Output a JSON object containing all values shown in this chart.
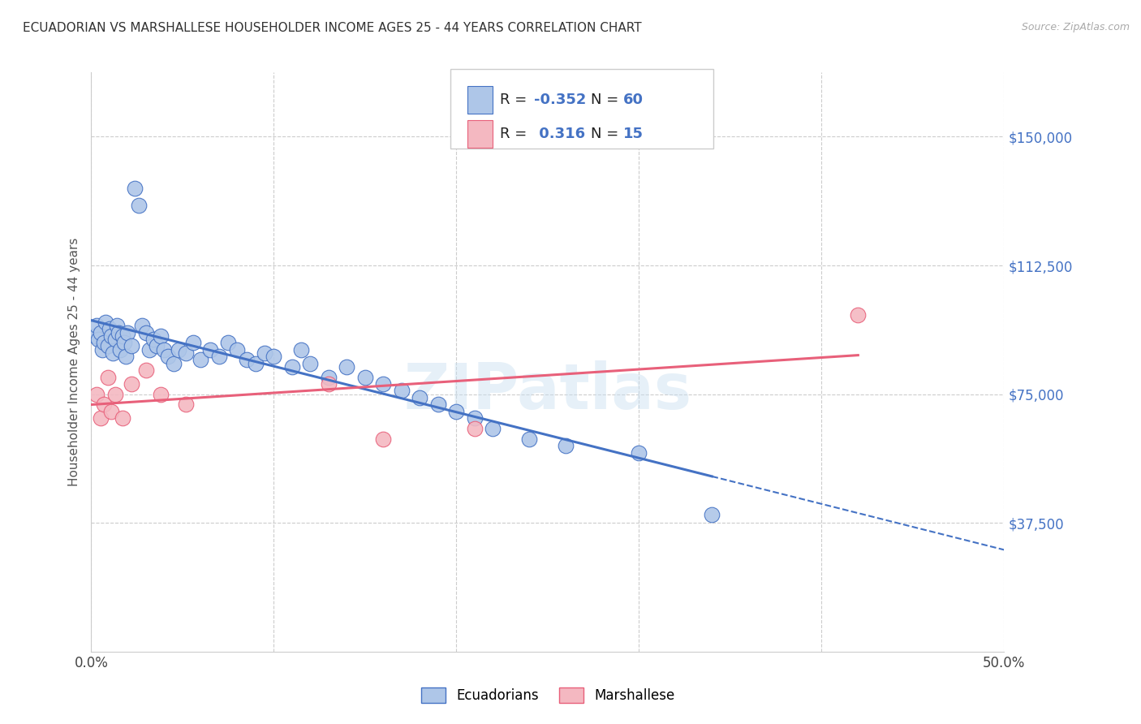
{
  "title": "ECUADORIAN VS MARSHALLESE HOUSEHOLDER INCOME AGES 25 - 44 YEARS CORRELATION CHART",
  "source": "Source: ZipAtlas.com",
  "ylabel": "Householder Income Ages 25 - 44 years",
  "xlim": [
    0.0,
    0.5
  ],
  "ylim": [
    0,
    168750
  ],
  "xticks": [
    0.0,
    0.1,
    0.2,
    0.3,
    0.4,
    0.5
  ],
  "xticklabels": [
    "0.0%",
    "",
    "",
    "",
    "",
    "50.0%"
  ],
  "ytick_values": [
    37500,
    75000,
    112500,
    150000
  ],
  "ytick_labels": [
    "$37,500",
    "$75,000",
    "$112,500",
    "$150,000"
  ],
  "background_color": "#ffffff",
  "grid_color": "#cccccc",
  "ecuadorian_color": "#aec6e8",
  "marshallese_color": "#f4b8c1",
  "ecuadorian_line_color": "#4472c4",
  "marshallese_line_color": "#e8607a",
  "watermark": "ZIPatlas",
  "ecuadorian_x": [
    0.002,
    0.003,
    0.004,
    0.005,
    0.006,
    0.007,
    0.008,
    0.009,
    0.01,
    0.011,
    0.012,
    0.013,
    0.014,
    0.015,
    0.016,
    0.017,
    0.018,
    0.019,
    0.02,
    0.022,
    0.024,
    0.026,
    0.028,
    0.03,
    0.032,
    0.034,
    0.036,
    0.038,
    0.04,
    0.042,
    0.045,
    0.048,
    0.052,
    0.056,
    0.06,
    0.065,
    0.07,
    0.075,
    0.08,
    0.085,
    0.09,
    0.095,
    0.1,
    0.11,
    0.115,
    0.12,
    0.13,
    0.14,
    0.15,
    0.16,
    0.17,
    0.18,
    0.19,
    0.2,
    0.21,
    0.22,
    0.24,
    0.26,
    0.3,
    0.34
  ],
  "ecuadorian_y": [
    92000,
    95000,
    91000,
    93000,
    88000,
    90000,
    96000,
    89000,
    94000,
    92000,
    87000,
    91000,
    95000,
    93000,
    88000,
    92000,
    90000,
    86000,
    93000,
    89000,
    135000,
    130000,
    95000,
    93000,
    88000,
    91000,
    89000,
    92000,
    88000,
    86000,
    84000,
    88000,
    87000,
    90000,
    85000,
    88000,
    86000,
    90000,
    88000,
    85000,
    84000,
    87000,
    86000,
    83000,
    88000,
    84000,
    80000,
    83000,
    80000,
    78000,
    76000,
    74000,
    72000,
    70000,
    68000,
    65000,
    62000,
    60000,
    58000,
    40000
  ],
  "marshallese_x": [
    0.003,
    0.005,
    0.007,
    0.009,
    0.011,
    0.013,
    0.017,
    0.022,
    0.03,
    0.038,
    0.052,
    0.13,
    0.16,
    0.21,
    0.42
  ],
  "marshallese_y": [
    75000,
    68000,
    72000,
    80000,
    70000,
    75000,
    68000,
    78000,
    82000,
    75000,
    72000,
    78000,
    62000,
    65000,
    98000
  ]
}
